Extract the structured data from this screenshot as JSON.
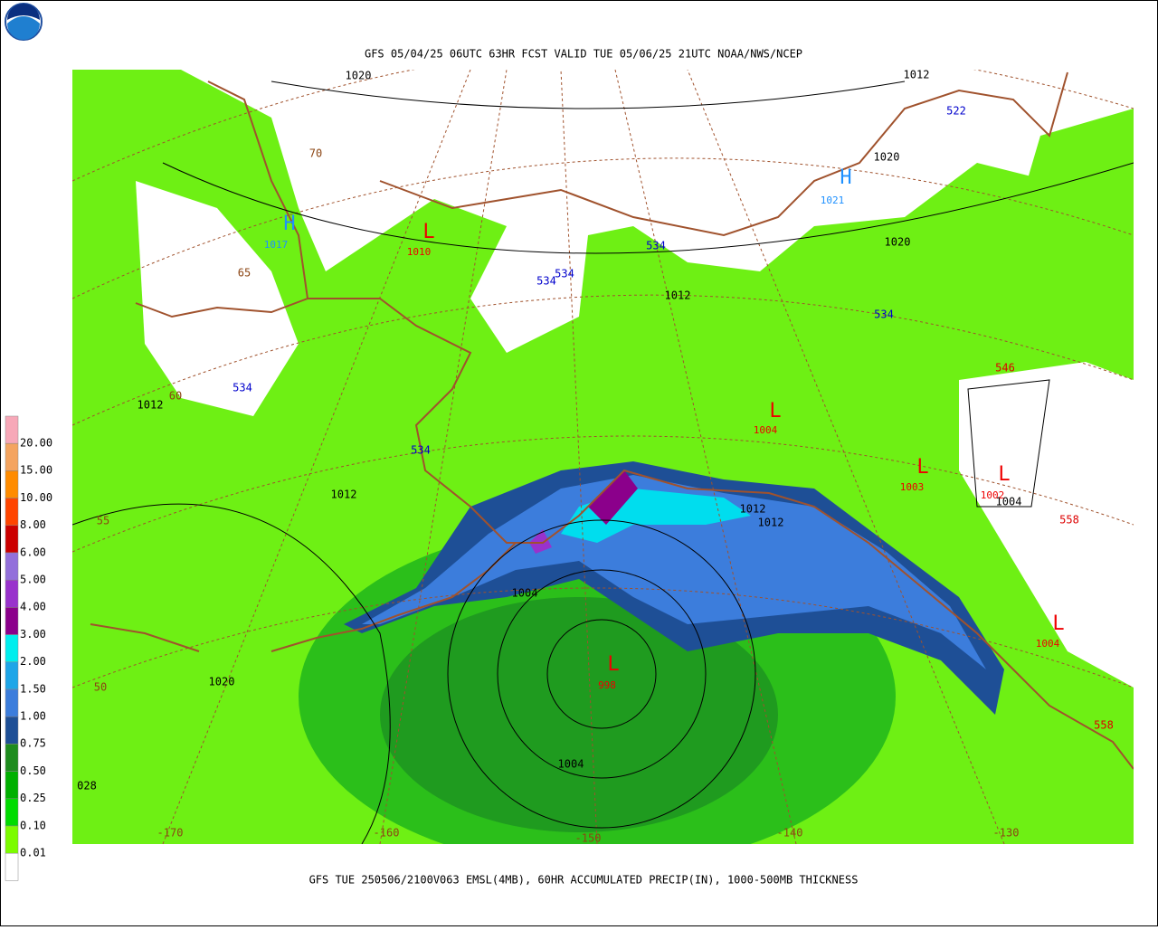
{
  "header": {
    "title": "GFS 05/04/25 06UTC 63HR FCST VALID TUE 05/06/25 21UTC NOAA/NWS/NCEP"
  },
  "footer": {
    "caption": "GFS TUE 250506/2100V063 EMSL(4MB), 60HR ACCUMULATED PRECIP(IN), 1000-500MB THICKNESS"
  },
  "legend": {
    "labels": [
      "20.00",
      "15.00",
      "10.00",
      "8.00",
      "6.00",
      "5.00",
      "4.00",
      "3.00",
      "2.00",
      "1.50",
      "1.00",
      "0.75",
      "0.50",
      "0.25",
      "0.10",
      "0.01"
    ],
    "colors": [
      "#f7a8b8",
      "#f4a460",
      "#ff8c00",
      "#ff4500",
      "#cc0000",
      "#9370db",
      "#9932cc",
      "#8b008b",
      "#00eeee",
      "#1ea6e8",
      "#3c7ddc",
      "#1e4f96",
      "#1e8c1e",
      "#00b000",
      "#00dc00",
      "#7cfc00",
      "#ffffff"
    ]
  },
  "map": {
    "pressure_labels": [
      "1020",
      "1012",
      "1020",
      "1020",
      "1012",
      "1012",
      "1012",
      "1012",
      "1012",
      "1004",
      "1020",
      "1004",
      "028",
      "1004"
    ],
    "thickness_labels": [
      {
        "text": "522",
        "color": "#0000cc"
      },
      {
        "text": "534",
        "color": "#0000cc"
      },
      {
        "text": "534",
        "color": "#0000cc"
      },
      {
        "text": "534",
        "color": "#0000cc"
      },
      {
        "text": "534",
        "color": "#0000cc"
      },
      {
        "text": "534",
        "color": "#0000cc"
      },
      {
        "text": "534",
        "color": "#0000cc"
      },
      {
        "text": "546",
        "color": "#dd0000"
      },
      {
        "text": "558",
        "color": "#dd0000"
      },
      {
        "text": "558",
        "color": "#dd0000"
      }
    ],
    "grid_labels": [
      "70",
      "65",
      "60",
      "55",
      "50",
      "-170",
      "-160",
      "-150",
      "-140",
      "-130"
    ],
    "highs": [
      {
        "symbol": "H",
        "value": "1017"
      },
      {
        "symbol": "H",
        "value": "1021"
      }
    ],
    "lows": [
      {
        "symbol": "L",
        "value": "1010"
      },
      {
        "symbol": "L",
        "value": "1004"
      },
      {
        "symbol": "L",
        "value": "1003"
      },
      {
        "symbol": "L",
        "value": "1002"
      },
      {
        "symbol": "L",
        "value": "1004"
      },
      {
        "symbol": "L",
        "value": "998"
      }
    ]
  }
}
